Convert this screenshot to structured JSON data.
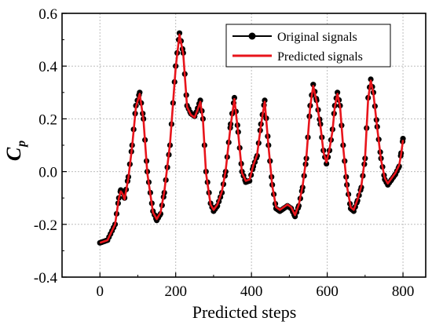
{
  "chart_data": {
    "type": "line",
    "xlabel": "Predicted steps",
    "ylabel": {
      "main": "C",
      "sub": "p"
    },
    "xlim": [
      -100,
      860
    ],
    "ylim": [
      -0.4,
      0.6
    ],
    "xticks": [
      0,
      200,
      400,
      600,
      800
    ],
    "yticks": [
      -0.4,
      -0.2,
      0.0,
      0.2,
      0.4,
      0.6
    ],
    "xtick_labels": [
      "0",
      "200",
      "400",
      "600",
      "800"
    ],
    "ytick_labels": [
      "-0.4",
      "-0.2",
      "0.0",
      "0.2",
      "0.4",
      "0.6"
    ],
    "grid": true,
    "legend": {
      "position": "top-right",
      "entries": [
        {
          "label": "Original signals",
          "marker": "circle",
          "color": "#000000"
        },
        {
          "label": "Predicted signals",
          "marker": "none",
          "color": "#e8141b"
        }
      ]
    },
    "series": [
      {
        "name": "Original signals",
        "color": "#000000",
        "marker": "circle",
        "points": [
          [
            0,
            -0.27
          ],
          [
            20,
            -0.26
          ],
          [
            40,
            -0.2
          ],
          [
            50,
            -0.1
          ],
          [
            55,
            -0.07
          ],
          [
            60,
            -0.08
          ],
          [
            65,
            -0.1
          ],
          [
            75,
            -0.02
          ],
          [
            85,
            0.1
          ],
          [
            95,
            0.25
          ],
          [
            105,
            0.3
          ],
          [
            115,
            0.2
          ],
          [
            125,
            0.0
          ],
          [
            140,
            -0.15
          ],
          [
            150,
            -0.185
          ],
          [
            160,
            -0.16
          ],
          [
            170,
            -0.08
          ],
          [
            185,
            0.1
          ],
          [
            200,
            0.4
          ],
          [
            210,
            0.525
          ],
          [
            220,
            0.45
          ],
          [
            230,
            0.25
          ],
          [
            240,
            0.22
          ],
          [
            250,
            0.21
          ],
          [
            258,
            0.24
          ],
          [
            265,
            0.27
          ],
          [
            272,
            0.2
          ],
          [
            280,
            0.0
          ],
          [
            292,
            -0.12
          ],
          [
            300,
            -0.15
          ],
          [
            310,
            -0.13
          ],
          [
            322,
            -0.08
          ],
          [
            332,
            0.0
          ],
          [
            345,
            0.18
          ],
          [
            355,
            0.28
          ],
          [
            365,
            0.15
          ],
          [
            375,
            0.0
          ],
          [
            385,
            -0.04
          ],
          [
            395,
            -0.035
          ],
          [
            405,
            0.02
          ],
          [
            415,
            0.06
          ],
          [
            425,
            0.18
          ],
          [
            435,
            0.27
          ],
          [
            445,
            0.1
          ],
          [
            455,
            -0.05
          ],
          [
            465,
            -0.14
          ],
          [
            475,
            -0.15
          ],
          [
            485,
            -0.14
          ],
          [
            495,
            -0.13
          ],
          [
            505,
            -0.14
          ],
          [
            515,
            -0.17
          ],
          [
            525,
            -0.13
          ],
          [
            535,
            -0.06
          ],
          [
            545,
            0.05
          ],
          [
            555,
            0.25
          ],
          [
            563,
            0.33
          ],
          [
            572,
            0.27
          ],
          [
            582,
            0.18
          ],
          [
            590,
            0.08
          ],
          [
            598,
            0.03
          ],
          [
            606,
            0.08
          ],
          [
            614,
            0.16
          ],
          [
            620,
            0.25
          ],
          [
            627,
            0.3
          ],
          [
            634,
            0.25
          ],
          [
            642,
            0.1
          ],
          [
            652,
            -0.05
          ],
          [
            662,
            -0.14
          ],
          [
            670,
            -0.15
          ],
          [
            680,
            -0.11
          ],
          [
            690,
            -0.06
          ],
          [
            700,
            0.05
          ],
          [
            708,
            0.28
          ],
          [
            715,
            0.35
          ],
          [
            722,
            0.3
          ],
          [
            732,
            0.17
          ],
          [
            742,
            0.05
          ],
          [
            752,
            -0.03
          ],
          [
            760,
            -0.05
          ],
          [
            770,
            -0.03
          ],
          [
            780,
            -0.01
          ],
          [
            790,
            0.02
          ],
          [
            795,
            0.07
          ],
          [
            800,
            0.125
          ]
        ]
      },
      {
        "name": "Predicted signals",
        "color": "#e8141b",
        "marker": "none",
        "points": [
          [
            0,
            -0.27
          ],
          [
            20,
            -0.26
          ],
          [
            40,
            -0.2
          ],
          [
            50,
            -0.1
          ],
          [
            55,
            -0.075
          ],
          [
            60,
            -0.085
          ],
          [
            65,
            -0.105
          ],
          [
            75,
            -0.025
          ],
          [
            85,
            0.095
          ],
          [
            95,
            0.245
          ],
          [
            105,
            0.295
          ],
          [
            115,
            0.195
          ],
          [
            125,
            -0.005
          ],
          [
            140,
            -0.155
          ],
          [
            150,
            -0.18
          ],
          [
            160,
            -0.155
          ],
          [
            170,
            -0.075
          ],
          [
            185,
            0.105
          ],
          [
            200,
            0.395
          ],
          [
            210,
            0.52
          ],
          [
            220,
            0.445
          ],
          [
            230,
            0.245
          ],
          [
            240,
            0.215
          ],
          [
            250,
            0.205
          ],
          [
            258,
            0.235
          ],
          [
            265,
            0.265
          ],
          [
            272,
            0.195
          ],
          [
            280,
            -0.005
          ],
          [
            292,
            -0.125
          ],
          [
            300,
            -0.145
          ],
          [
            310,
            -0.125
          ],
          [
            322,
            -0.075
          ],
          [
            332,
            0.005
          ],
          [
            345,
            0.175
          ],
          [
            355,
            0.275
          ],
          [
            365,
            0.145
          ],
          [
            375,
            -0.005
          ],
          [
            385,
            -0.035
          ],
          [
            395,
            -0.03
          ],
          [
            405,
            0.025
          ],
          [
            415,
            0.065
          ],
          [
            425,
            0.175
          ],
          [
            435,
            0.265
          ],
          [
            445,
            0.095
          ],
          [
            455,
            -0.055
          ],
          [
            465,
            -0.135
          ],
          [
            475,
            -0.145
          ],
          [
            485,
            -0.135
          ],
          [
            495,
            -0.125
          ],
          [
            505,
            -0.135
          ],
          [
            515,
            -0.165
          ],
          [
            525,
            -0.125
          ],
          [
            535,
            -0.055
          ],
          [
            545,
            0.055
          ],
          [
            555,
            0.245
          ],
          [
            563,
            0.325
          ],
          [
            572,
            0.265
          ],
          [
            582,
            0.175
          ],
          [
            590,
            0.075
          ],
          [
            598,
            0.035
          ],
          [
            606,
            0.085
          ],
          [
            614,
            0.155
          ],
          [
            620,
            0.245
          ],
          [
            627,
            0.295
          ],
          [
            634,
            0.245
          ],
          [
            642,
            0.095
          ],
          [
            652,
            -0.055
          ],
          [
            662,
            -0.135
          ],
          [
            670,
            -0.145
          ],
          [
            680,
            -0.105
          ],
          [
            690,
            -0.055
          ],
          [
            700,
            0.055
          ],
          [
            708,
            0.275
          ],
          [
            715,
            0.345
          ],
          [
            722,
            0.295
          ],
          [
            732,
            0.165
          ],
          [
            742,
            0.045
          ],
          [
            752,
            -0.025
          ],
          [
            760,
            -0.045
          ],
          [
            770,
            -0.025
          ],
          [
            780,
            -0.005
          ],
          [
            790,
            0.025
          ],
          [
            795,
            0.065
          ],
          [
            800,
            0.12
          ]
        ]
      }
    ]
  }
}
